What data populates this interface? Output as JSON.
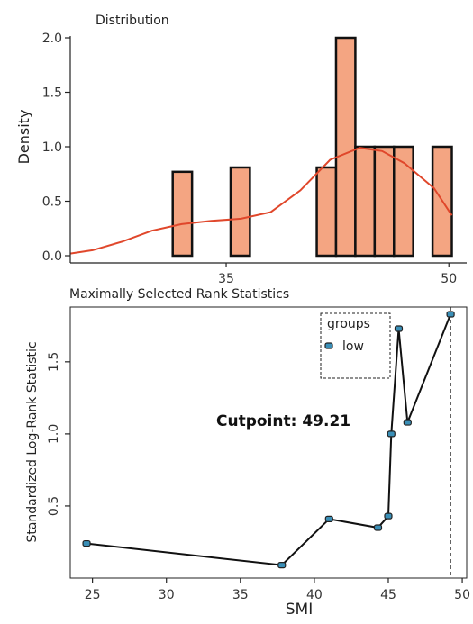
{
  "chart_data": [
    {
      "type": "bar",
      "title": "Distribution",
      "ylabel": "Density",
      "xlabel": "",
      "xlim": [
        24.5,
        51.2
      ],
      "ylim": [
        0,
        2.0
      ],
      "xticks": [
        35,
        50
      ],
      "yticks": [
        0.0,
        0.5,
        1.0,
        1.5,
        2.0
      ],
      "bars": [
        {
          "x0": 31.4,
          "x1": 32.7,
          "y": 0.77
        },
        {
          "x0": 35.3,
          "x1": 36.6,
          "y": 0.81
        },
        {
          "x0": 41.1,
          "x1": 42.4,
          "y": 0.81
        },
        {
          "x0": 42.4,
          "x1": 43.7,
          "y": 2.0
        },
        {
          "x0": 43.7,
          "x1": 45.0,
          "y": 1.0
        },
        {
          "x0": 45.0,
          "x1": 46.3,
          "y": 1.0
        },
        {
          "x0": 46.3,
          "x1": 47.6,
          "y": 1.0
        },
        {
          "x0": 48.9,
          "x1": 50.2,
          "y": 1.0
        }
      ],
      "density_curve": [
        [
          24.5,
          0.02
        ],
        [
          26,
          0.05
        ],
        [
          28,
          0.13
        ],
        [
          30,
          0.23
        ],
        [
          32,
          0.29
        ],
        [
          34,
          0.32
        ],
        [
          36,
          0.34
        ],
        [
          38,
          0.4
        ],
        [
          40,
          0.6
        ],
        [
          42,
          0.88
        ],
        [
          44,
          0.99
        ],
        [
          45.5,
          0.96
        ],
        [
          47,
          0.85
        ],
        [
          49,
          0.62
        ],
        [
          50.2,
          0.37
        ]
      ],
      "colors": {
        "bar_fill": "#f4a582",
        "bar_stroke": "#111111",
        "curve": "#e0472b"
      }
    },
    {
      "type": "line",
      "title": "Maximally Selected Rank Statistics",
      "xlabel": "SMI",
      "ylabel": "Standardized Log-Rank Statistic",
      "xlim": [
        23.5,
        50.3
      ],
      "ylim": [
        0.0,
        1.88
      ],
      "xticks": [
        25,
        30,
        35,
        40,
        45,
        50
      ],
      "yticks": [
        0.5,
        1.0,
        1.5
      ],
      "series": [
        {
          "name": "low",
          "x": [
            24.6,
            37.8,
            41.0,
            44.3,
            45.0,
            45.2,
            45.7,
            46.3,
            49.21
          ],
          "y": [
            0.24,
            0.09,
            0.41,
            0.35,
            0.43,
            1.0,
            1.73,
            1.08,
            1.83
          ]
        }
      ],
      "cutpoint": 49.21,
      "annotation": "Cutpoint: 49.21",
      "legend": {
        "title": "groups",
        "labels": [
          "low"
        ],
        "position": "top-right"
      },
      "colors": {
        "line": "#111111",
        "marker_fill": "#3a8fb7",
        "marker_stroke": "#222222"
      }
    }
  ]
}
